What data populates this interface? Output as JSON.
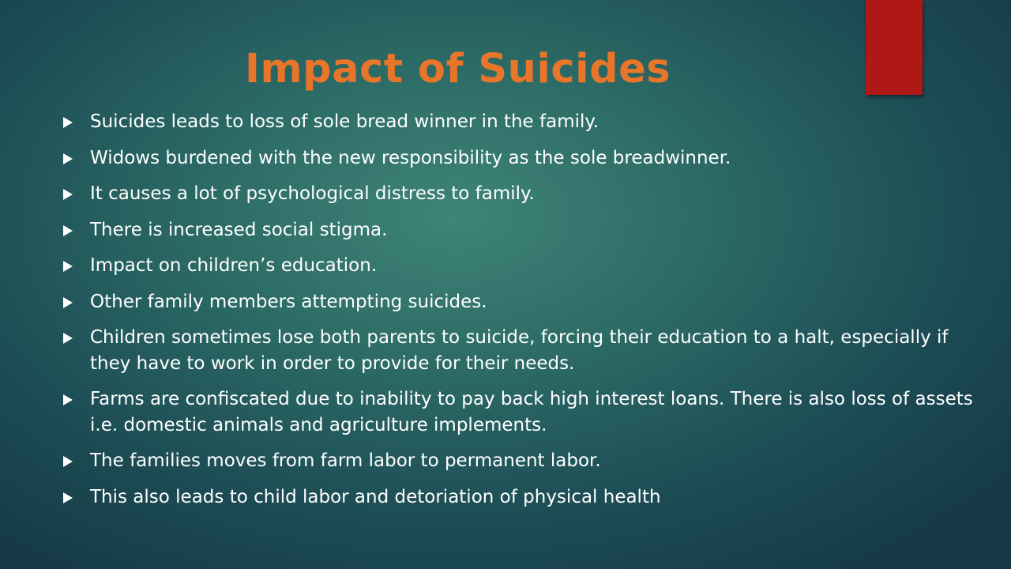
{
  "slide": {
    "title": "Impact of Suicides",
    "bullets": [
      "Suicides leads to loss of sole bread winner in the family.",
      "Widows burdened with the new responsibility as the sole breadwinner.",
      "It causes a lot of psychological distress to family.",
      "There is increased social stigma.",
      "Impact on children’s education.",
      "Other family members attempting suicides.",
      "Children sometimes lose both parents to suicide, forcing their education to a halt, especially if they have to work in order to provide for their needs.",
      "Farms are confiscated due to inability to pay back high interest loans. There is also loss of assets i.e. domestic animals and agriculture implements.",
      "The families moves from farm labor to permanent labor.",
      "This also leads to child labor and  detoriation of physical health"
    ],
    "bullet_icon": "triangle-right-icon"
  },
  "colors": {
    "title": "#e8752a",
    "accent_bar": "#b01818",
    "bullet_text": "#ffffff"
  }
}
